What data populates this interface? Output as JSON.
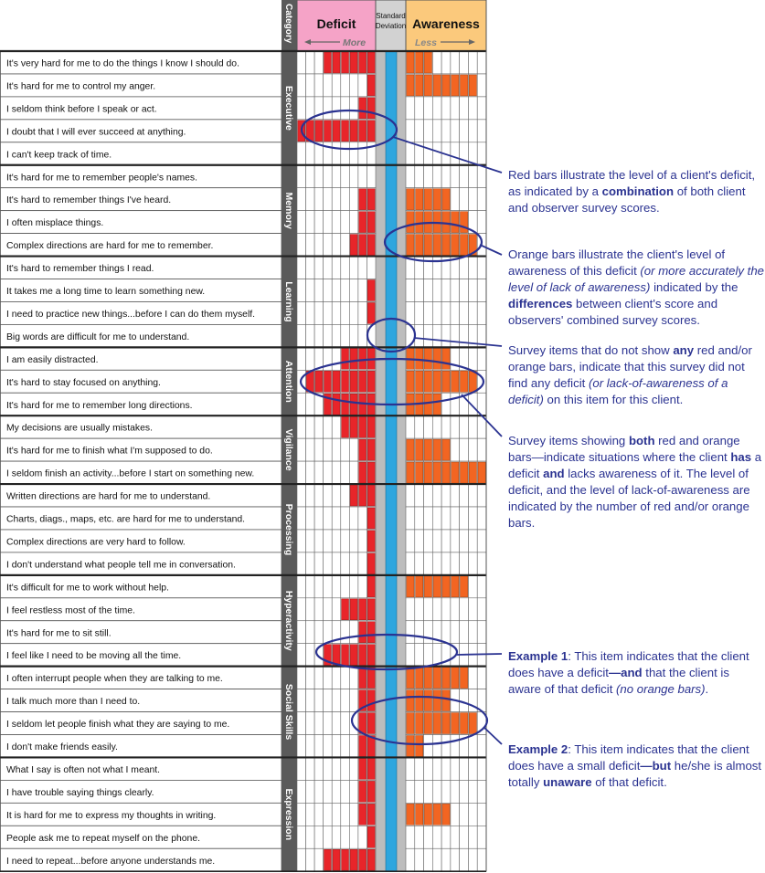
{
  "chart_data": {
    "type": "table",
    "header": {
      "category": "Category",
      "deficit": "Deficit",
      "deficit_dir": "More",
      "std_line1": "Standard",
      "std_line2": "Deviation",
      "awareness": "Awareness",
      "awareness_dir": "Less"
    },
    "categories": [
      {
        "name": "Executive",
        "rows": [
          0,
          4
        ]
      },
      {
        "name": "Memory",
        "rows": [
          5,
          8
        ]
      },
      {
        "name": "Learning",
        "rows": [
          9,
          12
        ]
      },
      {
        "name": "Attention",
        "rows": [
          13,
          15
        ]
      },
      {
        "name": "Vigilance",
        "rows": [
          16,
          18
        ]
      },
      {
        "name": "Processing",
        "rows": [
          19,
          22
        ]
      },
      {
        "name": "Hyperactivity",
        "rows": [
          23,
          26
        ]
      },
      {
        "name": "Social Skills",
        "rows": [
          27,
          30
        ]
      },
      {
        "name": "Expression",
        "rows": [
          31,
          35
        ]
      }
    ],
    "items": [
      {
        "text": "It's very hard for me to do the things I know I should do.",
        "deficit": 6,
        "awareness": 3
      },
      {
        "text": "It's hard for me to control my anger.",
        "deficit": 1,
        "awareness": 8
      },
      {
        "text": "I seldom think before I speak or act.",
        "deficit": 2,
        "awareness": 0
      },
      {
        "text": "I doubt that I will ever succeed at anything.",
        "deficit": 9,
        "awareness": 0
      },
      {
        "text": "I can't keep track of time.",
        "deficit": 0,
        "awareness": 0
      },
      {
        "text": "It's hard for me to remember people's names.",
        "deficit": 0,
        "awareness": 0
      },
      {
        "text": "It's hard to remember things I've heard.",
        "deficit": 2,
        "awareness": 5
      },
      {
        "text": "I often misplace things.",
        "deficit": 2,
        "awareness": 7
      },
      {
        "text": "Complex directions are hard for me to remember.",
        "deficit": 3,
        "awareness": 8
      },
      {
        "text": "It's hard to remember things I read.",
        "deficit": 0,
        "awareness": 0
      },
      {
        "text": "It takes me a long time to learn something new.",
        "deficit": 1,
        "awareness": 0
      },
      {
        "text": "I need to practice new things...before I can do them myself.",
        "deficit": 1,
        "awareness": 0
      },
      {
        "text": "Big words are difficult for me to understand.",
        "deficit": 0,
        "awareness": 0
      },
      {
        "text": "I am easily distracted.",
        "deficit": 4,
        "awareness": 5
      },
      {
        "text": "It's hard to stay focused on anything.",
        "deficit": 8,
        "awareness": 8
      },
      {
        "text": "It's hard for me to remember long directions.",
        "deficit": 6,
        "awareness": 4
      },
      {
        "text": "My decisions are usually mistakes.",
        "deficit": 4,
        "awareness": 0
      },
      {
        "text": "It's hard for me to finish what I'm supposed to do.",
        "deficit": 2,
        "awareness": 5
      },
      {
        "text": "I seldom finish an activity...before I start on something new.",
        "deficit": 2,
        "awareness": 9
      },
      {
        "text": "Written directions are hard for me to understand.",
        "deficit": 3,
        "awareness": 0
      },
      {
        "text": "Charts, diags., maps, etc. are hard for me to understand.",
        "deficit": 1,
        "awareness": 0
      },
      {
        "text": "Complex directions are very hard to follow.",
        "deficit": 1,
        "awareness": 0
      },
      {
        "text": "I don't understand what people tell me in conversation.",
        "deficit": 1,
        "awareness": 0
      },
      {
        "text": "It's difficult for me to work without help.",
        "deficit": 1,
        "awareness": 7
      },
      {
        "text": "I feel restless most of the time.",
        "deficit": 4,
        "awareness": 0
      },
      {
        "text": "It's hard for me to sit still.",
        "deficit": 2,
        "awareness": 0
      },
      {
        "text": "I feel like I need to be moving all the time.",
        "deficit": 6,
        "awareness": 0
      },
      {
        "text": "I often interrupt people when they are talking to me.",
        "deficit": 2,
        "awareness": 7
      },
      {
        "text": "I talk much more than I need to.",
        "deficit": 2,
        "awareness": 5
      },
      {
        "text": "I seldom let people finish what they are saying to me.",
        "deficit": 2,
        "awareness": 8
      },
      {
        "text": "I don't make friends easily.",
        "deficit": 2,
        "awareness": 2
      },
      {
        "text": "What I say is often not what I meant.",
        "deficit": 2,
        "awareness": 0
      },
      {
        "text": "I have trouble saying things clearly.",
        "deficit": 2,
        "awareness": 0
      },
      {
        "text": "It is hard for me to express my thoughts in writing.",
        "deficit": 2,
        "awareness": 5
      },
      {
        "text": "People ask me to repeat myself on the phone.",
        "deficit": 1,
        "awareness": 0
      },
      {
        "text": "I need to repeat...before anyone understands me.",
        "deficit": 6,
        "awareness": 0
      }
    ],
    "deficit_max": 9,
    "awareness_max": 9,
    "colors": {
      "deficit": "#e8252a",
      "awareness": "#f26522",
      "deficit_header": "#f5a3c7",
      "awareness_header": "#fbc97c",
      "std_dev_bar": "#2fa6de",
      "std_dev_gray": "#bdbdbd",
      "category_band": "#5a5a5a",
      "annotation": "#2b3391"
    }
  },
  "annotations": [
    {
      "id": "red-bars",
      "parts": [
        {
          "t": "Red bars illustrate the level of a client's deficit, as indicated by a "
        },
        {
          "t": "combination",
          "b": true
        },
        {
          "t": " of both client and observer survey scores."
        }
      ]
    },
    {
      "id": "orange-bars",
      "parts": [
        {
          "t": "Orange bars illustrate the client's level of awareness of this deficit "
        },
        {
          "t": "(or more accurately the level of lack of awareness)",
          "i": true
        },
        {
          "t": " indicated by the "
        },
        {
          "t": "differences",
          "b": true
        },
        {
          "t": " between client's score and observers' combined survey scores."
        }
      ]
    },
    {
      "id": "no-bars",
      "parts": [
        {
          "t": "Survey items that do not show "
        },
        {
          "t": "any",
          "b": true
        },
        {
          "t": " red and/or orange bars, indicate that this survey did not find any deficit "
        },
        {
          "t": "(or lack-of-awareness of a deficit)",
          "i": true
        },
        {
          "t": " on this item for this client."
        }
      ]
    },
    {
      "id": "both-bars",
      "parts": [
        {
          "t": "Survey items showing "
        },
        {
          "t": "both",
          "b": true
        },
        {
          "t": " red and orange bars—indicate situations where the client "
        },
        {
          "t": "has",
          "b": true
        },
        {
          "t": " a deficit "
        },
        {
          "t": "and",
          "b": true
        },
        {
          "t": " lacks awareness of it. The level of deficit, and the level of lack-of-awareness are indicated by the number of red and/or orange bars."
        }
      ]
    },
    {
      "id": "example-1",
      "parts": [
        {
          "t": "Example 1",
          "b": true
        },
        {
          "t": ": This item indicates that the client does have a deficit"
        },
        {
          "t": "—and",
          "b": true
        },
        {
          "t": " that the client is aware of that deficit "
        },
        {
          "t": "(no orange bars)",
          "i": true
        },
        {
          "t": "."
        }
      ]
    },
    {
      "id": "example-2",
      "parts": [
        {
          "t": "Example 2",
          "b": true
        },
        {
          "t": ": This item indicates that the client does have a small deficit"
        },
        {
          "t": "—but",
          "b": true
        },
        {
          "t": " he/she is almost totally "
        },
        {
          "t": "unaware",
          "b": true
        },
        {
          "t": " of that deficit."
        }
      ]
    }
  ]
}
